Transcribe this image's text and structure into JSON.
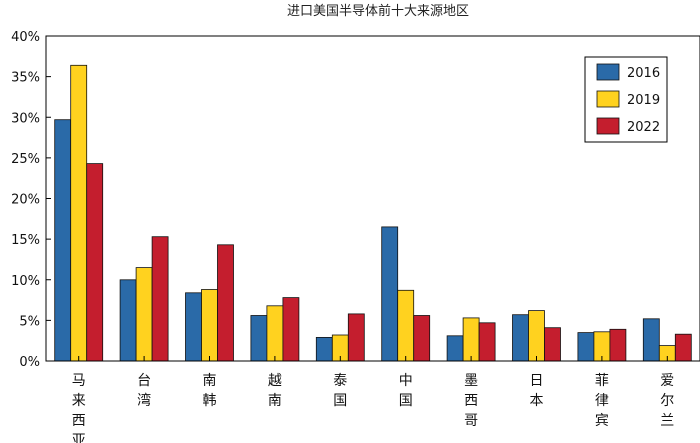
{
  "chart_data": {
    "type": "bar",
    "title": "进口美国半导体前十大来源地区",
    "categories": [
      "马来西亚",
      "台湾",
      "南韩",
      "越南",
      "泰国",
      "中国",
      "墨西哥",
      "日本",
      "菲律宾",
      "爱尔兰"
    ],
    "series": [
      {
        "name": "2016",
        "color": "#2a6aa8",
        "values": [
          29.7,
          10.0,
          8.4,
          5.6,
          2.9,
          16.5,
          3.1,
          5.7,
          3.5,
          5.2
        ]
      },
      {
        "name": "2019",
        "color": "#ffd21f",
        "values": [
          36.4,
          11.5,
          8.8,
          6.8,
          3.2,
          8.7,
          5.3,
          6.2,
          3.6,
          1.9
        ]
      },
      {
        "name": "2022",
        "color": "#c41e2e",
        "values": [
          24.3,
          15.3,
          14.3,
          7.8,
          5.8,
          5.6,
          4.7,
          4.1,
          3.9,
          3.3
        ]
      }
    ],
    "y_ticks": [
      "0%",
      "5%",
      "10%",
      "15%",
      "20%",
      "25%",
      "30%",
      "35%",
      "40%"
    ],
    "ylim": [
      0,
      40
    ],
    "legend_position": "top-right",
    "grid": false
  }
}
